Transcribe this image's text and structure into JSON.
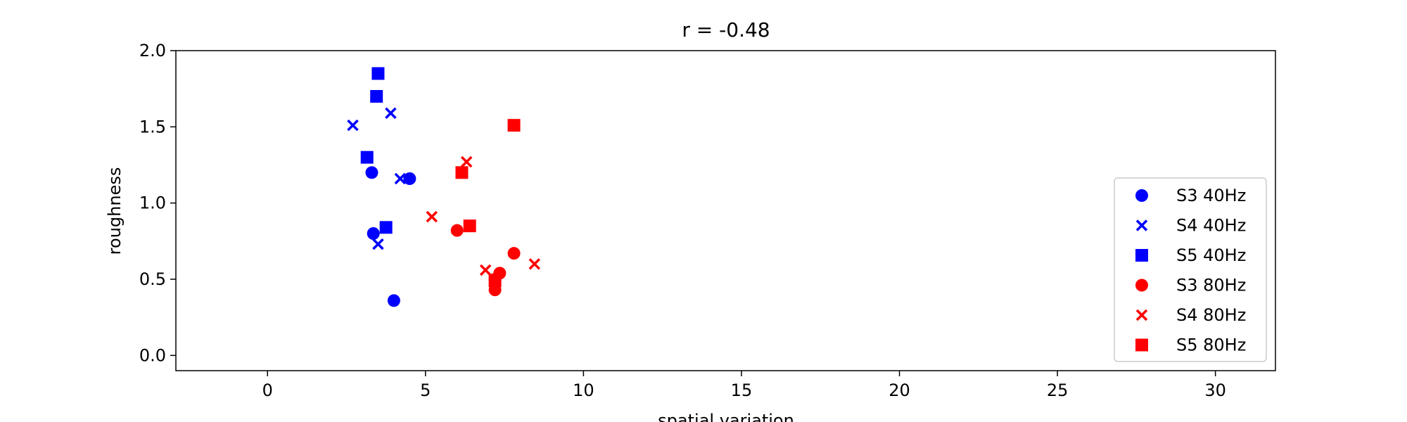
{
  "chart_data": {
    "type": "scatter",
    "title": "r = -0.48",
    "xlabel": "spatial variation",
    "ylabel": "roughness",
    "xlim": [
      -2.9,
      31.9
    ],
    "ylim": [
      -0.1,
      2.0
    ],
    "xticks": [
      0,
      5,
      10,
      15,
      20,
      25,
      30
    ],
    "xtick_labels": [
      "0",
      "5",
      "10",
      "15",
      "20",
      "25",
      "30"
    ],
    "yticks": [
      0.0,
      0.5,
      1.0,
      1.5,
      2.0
    ],
    "ytick_labels": [
      "0.0",
      "0.5",
      "1.0",
      "1.5",
      "2.0"
    ],
    "grid": false,
    "legend_position": "lower-right",
    "series": [
      {
        "name": "S3 40Hz",
        "marker": "circle",
        "color": "#0000ff",
        "points": [
          [
            3.3,
            1.2
          ],
          [
            4.5,
            1.16
          ],
          [
            3.35,
            0.8
          ],
          [
            4.0,
            0.36
          ]
        ]
      },
      {
        "name": "S4 40Hz",
        "marker": "x",
        "color": "#0000ff",
        "points": [
          [
            2.7,
            1.51
          ],
          [
            3.9,
            1.59
          ],
          [
            4.2,
            1.16
          ],
          [
            3.5,
            0.73
          ]
        ]
      },
      {
        "name": "S5 40Hz",
        "marker": "square",
        "color": "#0000ff",
        "points": [
          [
            3.5,
            1.85
          ],
          [
            3.45,
            1.7
          ],
          [
            3.15,
            1.3
          ],
          [
            3.75,
            0.84
          ]
        ]
      },
      {
        "name": "S3 80Hz",
        "marker": "circle",
        "color": "#ff0000",
        "points": [
          [
            6.0,
            0.82
          ],
          [
            7.8,
            0.67
          ],
          [
            7.35,
            0.54
          ],
          [
            7.2,
            0.5
          ],
          [
            7.2,
            0.43
          ]
        ]
      },
      {
        "name": "S4 80Hz",
        "marker": "x",
        "color": "#ff0000",
        "points": [
          [
            6.3,
            1.27
          ],
          [
            5.2,
            0.91
          ],
          [
            6.9,
            0.56
          ],
          [
            8.45,
            0.6
          ]
        ]
      },
      {
        "name": "S5 80Hz",
        "marker": "square",
        "color": "#ff0000",
        "points": [
          [
            7.8,
            1.51
          ],
          [
            6.15,
            1.2
          ],
          [
            6.4,
            0.85
          ],
          [
            7.2,
            0.49
          ]
        ]
      }
    ]
  }
}
